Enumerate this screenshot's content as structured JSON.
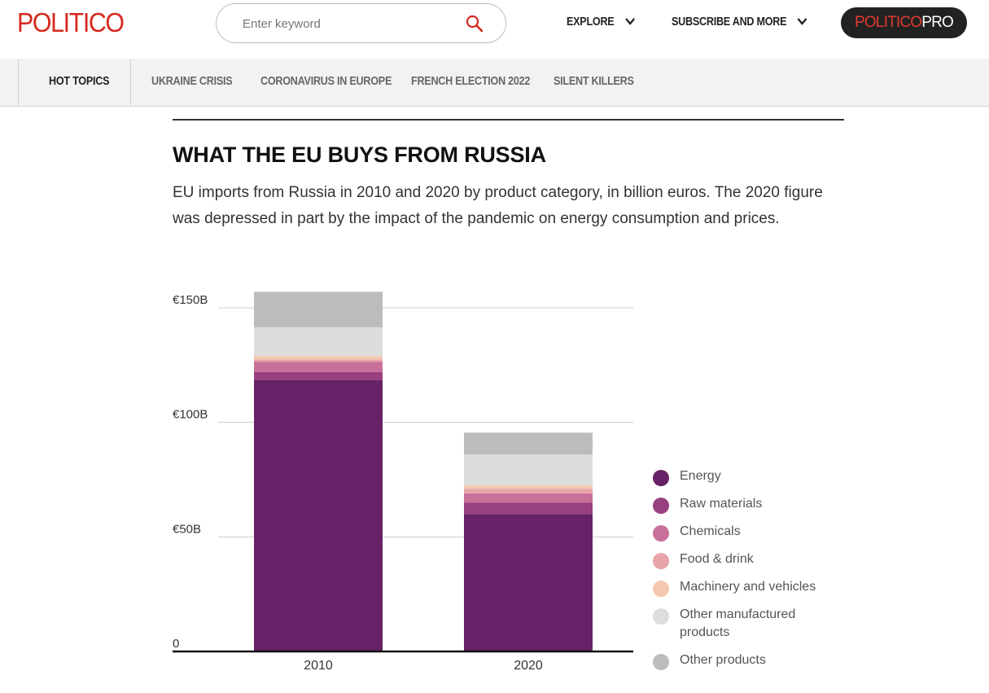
{
  "header": {
    "logo": "POLITICO",
    "search_placeholder": "Enter keyword",
    "explore_label": "EXPLORE",
    "subscribe_label": "SUBSCRIBE AND MORE",
    "pro_label_1": "POLITICO",
    "pro_label_2": "PRO"
  },
  "topics": {
    "items": [
      {
        "label": "HOT TOPICS"
      },
      {
        "label": "UKRAINE CRISIS"
      },
      {
        "label": "CORONAVIRUS IN EUROPE"
      },
      {
        "label": "FRENCH ELECTION 2022"
      },
      {
        "label": "SILENT KILLERS"
      }
    ]
  },
  "article": {
    "title": "WHAT THE EU BUYS FROM RUSSIA",
    "subtitle": "EU imports from Russia in 2010 and 2020 by product category, in billion euros. The 2020 figure was depressed in part by the impact of the pandemic on energy consumption and prices."
  },
  "chart_data": {
    "type": "bar",
    "stacked": true,
    "categories": [
      "2010",
      "2020"
    ],
    "ylim": [
      0,
      150
    ],
    "yticks": [
      0,
      50,
      100,
      150
    ],
    "ytick_labels": [
      "0",
      "€50B",
      "€100B",
      "€150B"
    ],
    "legend_position": "right",
    "series": [
      {
        "name": "Energy",
        "color": "#662266",
        "values": [
          118.5,
          60
        ]
      },
      {
        "name": "Raw materials",
        "color": "#99407f",
        "values": [
          3.5,
          5
        ]
      },
      {
        "name": "Chemicals",
        "color": "#c8709a",
        "values": [
          4.5,
          4
        ]
      },
      {
        "name": "Food & drink",
        "color": "#e8a4a8",
        "values": [
          1,
          2
        ]
      },
      {
        "name": "Machinery and vehicles",
        "color": "#f4c8b0",
        "values": [
          1.5,
          1.5
        ]
      },
      {
        "name": "Other manufactured products",
        "color": "#dddddd",
        "values": [
          12.5,
          13.5
        ]
      },
      {
        "name": "Other products",
        "color": "#bcbcbc",
        "values": [
          15.5,
          9.5
        ]
      }
    ]
  }
}
